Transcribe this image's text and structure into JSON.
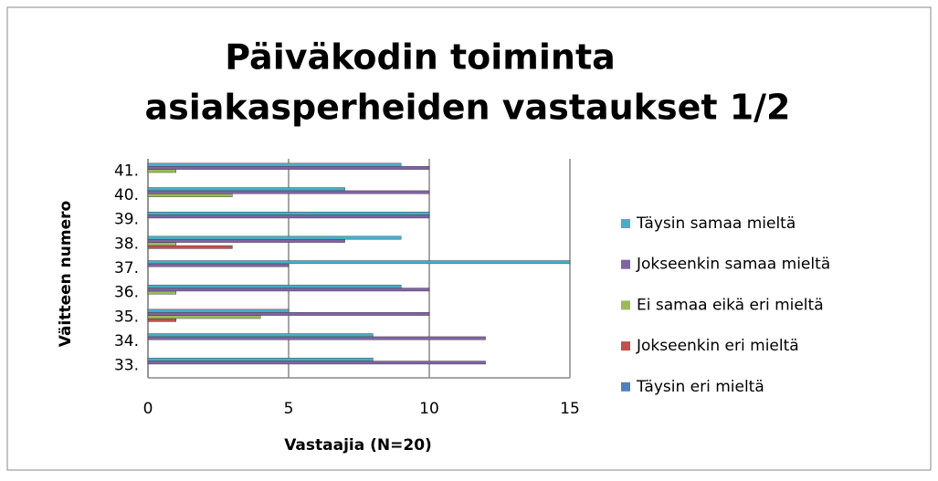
{
  "chart_data": {
    "type": "bar",
    "orientation": "horizontal",
    "title": [
      "Päiväkodin toiminta",
      "asiakasperheiden vastaukset 1/2"
    ],
    "x_label": "Vastaajia (N=20)",
    "y_label": "Väitteen numero",
    "categories": [
      "33.",
      "34.",
      "35.",
      "36.",
      "37.",
      "38.",
      "39.",
      "40.",
      "41."
    ],
    "series": [
      {
        "name": "Täysin eri mieltä",
        "color": "#4f81bd",
        "values": [
          0,
          0,
          0,
          0,
          0,
          0,
          0,
          0,
          0
        ]
      },
      {
        "name": "Jokseenkin eri mieltä",
        "color": "#c0504d",
        "values": [
          0,
          0,
          1,
          0,
          0,
          3,
          0,
          0,
          0
        ]
      },
      {
        "name": "Ei samaa eikä eri mieltä",
        "color": "#9bbb59",
        "values": [
          0,
          0,
          4,
          1,
          0,
          1,
          0,
          3,
          1
        ]
      },
      {
        "name": "Jokseenkin samaa mieltä",
        "color": "#8064a2",
        "values": [
          12,
          12,
          10,
          10,
          5,
          7,
          10,
          10,
          10
        ]
      },
      {
        "name": "Täysin samaa mieltä",
        "color": "#4bacc6",
        "values": [
          8,
          8,
          5,
          9,
          15,
          9,
          10,
          7,
          9
        ]
      }
    ],
    "xlim": [
      0,
      15
    ],
    "xticks": [
      0,
      5,
      10,
      15
    ],
    "grid": true,
    "legend": "right"
  }
}
